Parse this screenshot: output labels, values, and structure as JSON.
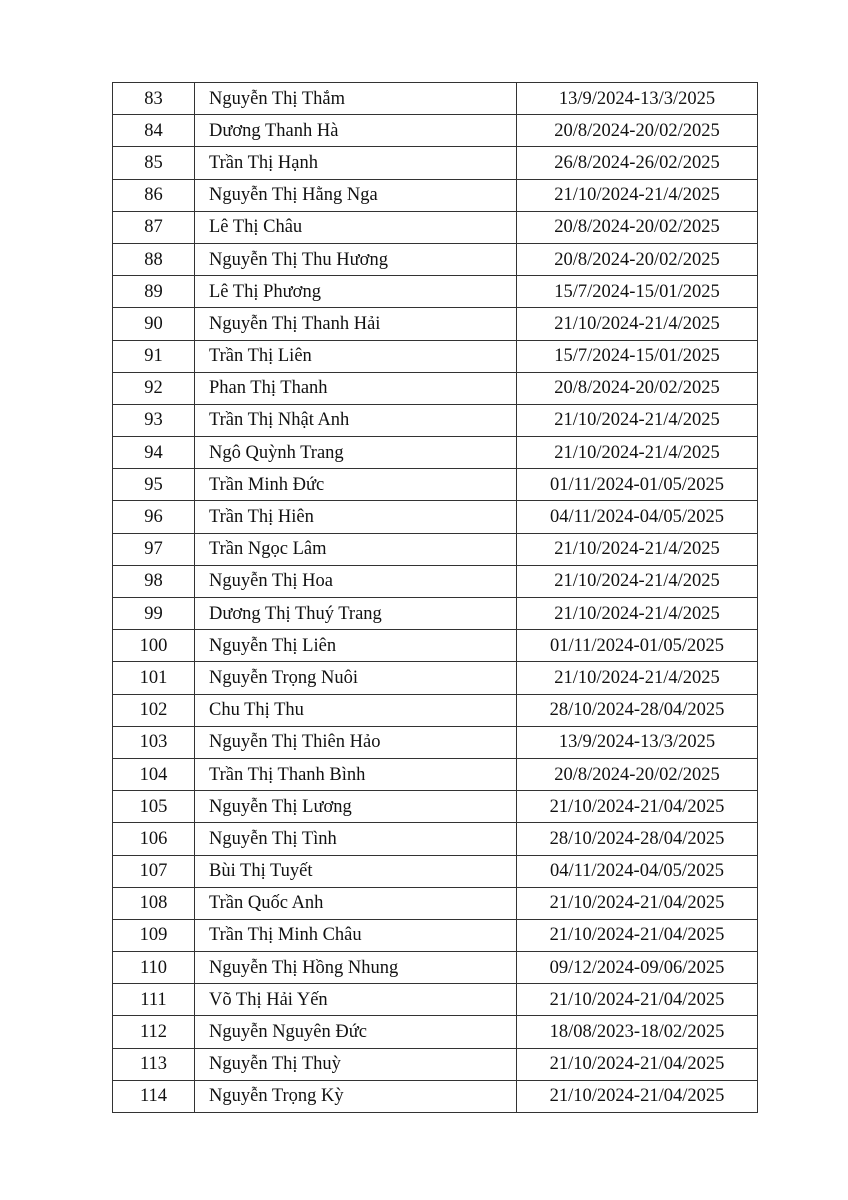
{
  "rows": [
    [
      "83",
      "Nguyễn Thị Thắm",
      "13/9/2024-13/3/2025"
    ],
    [
      "84",
      "Dương Thanh Hà",
      "20/8/2024-20/02/2025"
    ],
    [
      "85",
      "Trần Thị Hạnh",
      "26/8/2024-26/02/2025"
    ],
    [
      "86",
      "Nguyễn Thị Hằng Nga",
      "21/10/2024-21/4/2025"
    ],
    [
      "87",
      "Lê Thị Châu",
      "20/8/2024-20/02/2025"
    ],
    [
      "88",
      "Nguyễn Thị Thu Hương",
      "20/8/2024-20/02/2025"
    ],
    [
      "89",
      "Lê Thị Phương",
      "15/7/2024-15/01/2025"
    ],
    [
      "90",
      "Nguyễn Thị Thanh Hải",
      "21/10/2024-21/4/2025"
    ],
    [
      "91",
      "Trần Thị Liên",
      "15/7/2024-15/01/2025"
    ],
    [
      "92",
      "Phan Thị Thanh",
      "20/8/2024-20/02/2025"
    ],
    [
      "93",
      "Trần Thị Nhật Anh",
      "21/10/2024-21/4/2025"
    ],
    [
      "94",
      "Ngô Quỳnh Trang",
      "21/10/2024-21/4/2025"
    ],
    [
      "95",
      "Trần Minh Đức",
      "01/11/2024-01/05/2025"
    ],
    [
      "96",
      "Trần Thị Hiên",
      "04/11/2024-04/05/2025"
    ],
    [
      "97",
      "Trần Ngọc Lâm",
      "21/10/2024-21/4/2025"
    ],
    [
      "98",
      "Nguyễn Thị Hoa",
      "21/10/2024-21/4/2025"
    ],
    [
      "99",
      "Dương Thị Thuý Trang",
      "21/10/2024-21/4/2025"
    ],
    [
      "100",
      "Nguyễn Thị Liên",
      "01/11/2024-01/05/2025"
    ],
    [
      "101",
      "Nguyễn Trọng Nuôi",
      "21/10/2024-21/4/2025"
    ],
    [
      "102",
      "Chu Thị Thu",
      "28/10/2024-28/04/2025"
    ],
    [
      "103",
      "Nguyễn Thị Thiên Hảo",
      "13/9/2024-13/3/2025"
    ],
    [
      "104",
      "Trần Thị Thanh Bình",
      "20/8/2024-20/02/2025"
    ],
    [
      "105",
      "Nguyễn Thị Lương",
      "21/10/2024-21/04/2025"
    ],
    [
      "106",
      "Nguyễn Thị Tình",
      "28/10/2024-28/04/2025"
    ],
    [
      "107",
      "Bùi Thị Tuyết",
      "04/11/2024-04/05/2025"
    ],
    [
      "108",
      "Trần Quốc Anh",
      "21/10/2024-21/04/2025"
    ],
    [
      "109",
      "Trần Thị Minh Châu",
      "21/10/2024-21/04/2025"
    ],
    [
      "110",
      "Nguyễn Thị Hồng Nhung",
      "09/12/2024-09/06/2025"
    ],
    [
      "111",
      "Võ Thị Hải Yến",
      "21/10/2024-21/04/2025"
    ],
    [
      "112",
      "Nguyễn Nguyên Đức",
      "18/08/2023-18/02/2025"
    ],
    [
      "113",
      "Nguyễn Thị Thuỳ",
      "21/10/2024-21/04/2025"
    ],
    [
      "114",
      "Nguyễn Trọng Kỳ",
      "21/10/2024-21/04/2025"
    ]
  ]
}
